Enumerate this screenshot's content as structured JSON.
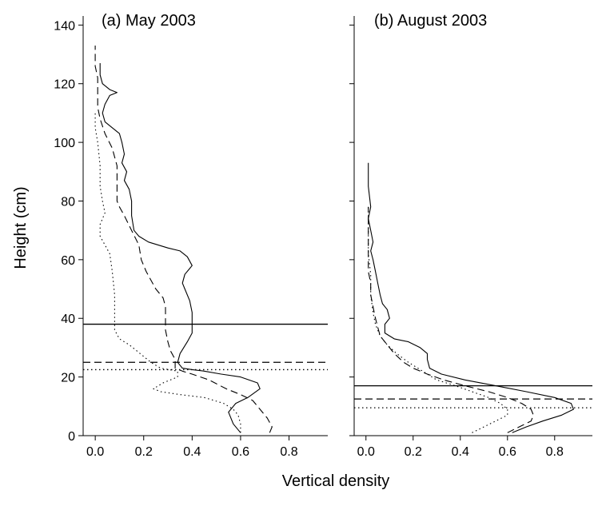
{
  "chart_data": [
    {
      "type": "line",
      "title": "(a) May 2003",
      "xlabel": "Vertical density",
      "ylabel": "Height (cm)",
      "xlim": [
        -0.05,
        0.96
      ],
      "ylim": [
        0,
        142
      ],
      "x_ticks": [
        0.0,
        0.2,
        0.4,
        0.6,
        0.8
      ],
      "x_tick_labels": [
        "0.0",
        "0.2",
        "0.4",
        "0.6",
        "0.8"
      ],
      "y_ticks": [
        0,
        20,
        40,
        60,
        80,
        100,
        120,
        140
      ],
      "y_tick_labels": [
        "0",
        "20",
        "40",
        "60",
        "80",
        "100",
        "120",
        "140"
      ],
      "series": [
        {
          "style": "solid",
          "points": [
            [
              0.6,
              1
            ],
            [
              0.57,
              4
            ],
            [
              0.55,
              8
            ],
            [
              0.58,
              11
            ],
            [
              0.63,
              13
            ],
            [
              0.68,
              16
            ],
            [
              0.67,
              18
            ],
            [
              0.6,
              20
            ],
            [
              0.52,
              21
            ],
            [
              0.45,
              22
            ],
            [
              0.4,
              22.5
            ],
            [
              0.36,
              23
            ],
            [
              0.34,
              25
            ],
            [
              0.35,
              28
            ],
            [
              0.38,
              32
            ],
            [
              0.4,
              35
            ],
            [
              0.4,
              38
            ],
            [
              0.4,
              42
            ],
            [
              0.39,
              46
            ],
            [
              0.37,
              50
            ],
            [
              0.36,
              52
            ],
            [
              0.37,
              55
            ],
            [
              0.39,
              57
            ],
            [
              0.4,
              58
            ],
            [
              0.38,
              61
            ],
            [
              0.35,
              63
            ],
            [
              0.3,
              64
            ],
            [
              0.22,
              66
            ],
            [
              0.18,
              68
            ],
            [
              0.16,
              70
            ],
            [
              0.15,
              75
            ],
            [
              0.15,
              80
            ],
            [
              0.14,
              84
            ],
            [
              0.12,
              87
            ],
            [
              0.13,
              90
            ],
            [
              0.11,
              93
            ],
            [
              0.12,
              96
            ],
            [
              0.11,
              100
            ],
            [
              0.1,
              103
            ],
            [
              0.07,
              105
            ],
            [
              0.04,
              107
            ],
            [
              0.03,
              110
            ],
            [
              0.04,
              113
            ],
            [
              0.06,
              116
            ],
            [
              0.09,
              117
            ],
            [
              0.06,
              118
            ],
            [
              0.03,
              120
            ],
            [
              0.02,
              123
            ],
            [
              0.02,
              127
            ]
          ],
          "height_line": 38
        },
        {
          "style": "dashed",
          "points": [
            [
              0.72,
              1
            ],
            [
              0.73,
              3
            ],
            [
              0.71,
              6
            ],
            [
              0.68,
              9
            ],
            [
              0.65,
              12
            ],
            [
              0.6,
              14
            ],
            [
              0.54,
              16
            ],
            [
              0.47,
              19
            ],
            [
              0.4,
              21
            ],
            [
              0.36,
              22
            ],
            [
              0.33,
              23
            ],
            [
              0.33,
              24
            ],
            [
              0.33,
              26
            ],
            [
              0.31,
              29
            ],
            [
              0.3,
              32
            ],
            [
              0.29,
              36
            ],
            [
              0.29,
              40
            ],
            [
              0.29,
              44
            ],
            [
              0.28,
              47
            ],
            [
              0.25,
              50
            ],
            [
              0.23,
              53
            ],
            [
              0.21,
              56
            ],
            [
              0.19,
              60
            ],
            [
              0.18,
              65
            ],
            [
              0.15,
              70
            ],
            [
              0.12,
              75
            ],
            [
              0.1,
              78
            ],
            [
              0.09,
              80
            ],
            [
              0.09,
              85
            ],
            [
              0.09,
              92
            ],
            [
              0.07,
              98
            ],
            [
              0.04,
              103
            ],
            [
              0.02,
              108
            ],
            [
              0.01,
              112
            ],
            [
              0.01,
              117
            ],
            [
              0.01,
              122
            ],
            [
              0.0,
              126
            ],
            [
              0.0,
              133
            ]
          ],
          "height_line": 25
        },
        {
          "style": "dotted",
          "points": [
            [
              0.6,
              1
            ],
            [
              0.6,
              4
            ],
            [
              0.59,
              7
            ],
            [
              0.57,
              9
            ],
            [
              0.53,
              11
            ],
            [
              0.45,
              13
            ],
            [
              0.35,
              14
            ],
            [
              0.27,
              15
            ],
            [
              0.24,
              16
            ],
            [
              0.28,
              18
            ],
            [
              0.34,
              20
            ],
            [
              0.34,
              22
            ],
            [
              0.27,
              23
            ],
            [
              0.23,
              25
            ],
            [
              0.2,
              27
            ],
            [
              0.17,
              29
            ],
            [
              0.14,
              31
            ],
            [
              0.1,
              33
            ],
            [
              0.08,
              36
            ],
            [
              0.08,
              40
            ],
            [
              0.08,
              48
            ],
            [
              0.07,
              56
            ],
            [
              0.06,
              62
            ],
            [
              0.04,
              65
            ],
            [
              0.02,
              68
            ],
            [
              0.02,
              72
            ],
            [
              0.04,
              76
            ],
            [
              0.03,
              80
            ],
            [
              0.02,
              85
            ],
            [
              0.02,
              92
            ],
            [
              0.01,
              100
            ],
            [
              0.0,
              105
            ],
            [
              0.0,
              110
            ]
          ],
          "height_line": 22.5
        }
      ]
    },
    {
      "type": "line",
      "title": "(b) August 2003",
      "xlabel": "Vertical density",
      "ylabel": "Height (cm)",
      "xlim": [
        -0.05,
        0.96
      ],
      "ylim": [
        0,
        142
      ],
      "x_ticks": [
        0.0,
        0.2,
        0.4,
        0.6,
        0.8
      ],
      "x_tick_labels": [
        "0.0",
        "0.2",
        "0.4",
        "0.6",
        "0.8"
      ],
      "y_ticks": [
        0,
        20,
        40,
        60,
        80,
        100,
        120,
        140
      ],
      "series": [
        {
          "style": "solid",
          "points": [
            [
              0.62,
              1
            ],
            [
              0.68,
              3
            ],
            [
              0.75,
              5
            ],
            [
              0.83,
              7
            ],
            [
              0.88,
              9
            ],
            [
              0.87,
              11
            ],
            [
              0.8,
              13
            ],
            [
              0.68,
              15
            ],
            [
              0.55,
              17
            ],
            [
              0.42,
              19
            ],
            [
              0.32,
              21
            ],
            [
              0.27,
              23
            ],
            [
              0.26,
              26
            ],
            [
              0.26,
              28
            ],
            [
              0.23,
              30
            ],
            [
              0.18,
              32
            ],
            [
              0.12,
              33
            ],
            [
              0.08,
              35
            ],
            [
              0.08,
              38
            ],
            [
              0.1,
              40
            ],
            [
              0.09,
              43
            ],
            [
              0.07,
              45
            ],
            [
              0.06,
              48
            ],
            [
              0.05,
              52
            ],
            [
              0.04,
              56
            ],
            [
              0.03,
              60
            ],
            [
              0.02,
              63
            ],
            [
              0.03,
              66
            ],
            [
              0.02,
              70
            ],
            [
              0.01,
              74
            ],
            [
              0.02,
              78
            ],
            [
              0.01,
              85
            ],
            [
              0.01,
              93
            ]
          ],
          "height_line": 17
        },
        {
          "style": "dashed",
          "points": [
            [
              0.6,
              1
            ],
            [
              0.65,
              3
            ],
            [
              0.7,
              5
            ],
            [
              0.71,
              7
            ],
            [
              0.7,
              9
            ],
            [
              0.66,
              11
            ],
            [
              0.6,
              13
            ],
            [
              0.52,
              15
            ],
            [
              0.42,
              17
            ],
            [
              0.33,
              19
            ],
            [
              0.26,
              21
            ],
            [
              0.2,
              23
            ],
            [
              0.16,
              25
            ],
            [
              0.12,
              28
            ],
            [
              0.09,
              31
            ],
            [
              0.06,
              34
            ],
            [
              0.05,
              37
            ],
            [
              0.04,
              40
            ],
            [
              0.03,
              44
            ],
            [
              0.02,
              48
            ],
            [
              0.02,
              52
            ],
            [
              0.01,
              56
            ],
            [
              0.01,
              62
            ],
            [
              0.01,
              70
            ],
            [
              0.01,
              78
            ]
          ],
          "height_line": 12.5
        },
        {
          "style": "dotted",
          "points": [
            [
              0.45,
              1
            ],
            [
              0.5,
              3
            ],
            [
              0.55,
              5
            ],
            [
              0.6,
              7
            ],
            [
              0.6,
              9
            ],
            [
              0.57,
              11
            ],
            [
              0.52,
              13
            ],
            [
              0.45,
              15
            ],
            [
              0.38,
              17
            ],
            [
              0.3,
              19
            ],
            [
              0.26,
              21
            ],
            [
              0.22,
              23
            ],
            [
              0.18,
              25
            ],
            [
              0.13,
              28
            ],
            [
              0.09,
              31
            ],
            [
              0.06,
              34
            ],
            [
              0.04,
              38
            ],
            [
              0.03,
              42
            ],
            [
              0.02,
              48
            ],
            [
              0.02,
              55
            ],
            [
              0.01,
              62
            ],
            [
              0.01,
              70
            ],
            [
              0.01,
              78
            ]
          ],
          "height_line": 9.5
        }
      ]
    }
  ]
}
